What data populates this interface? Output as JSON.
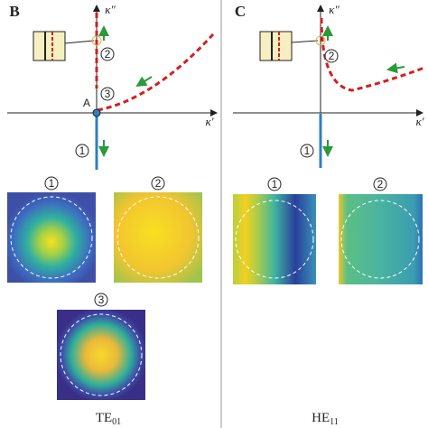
{
  "panels": [
    {
      "label": "B",
      "y_axis": "κ″",
      "x_axis": "κ′",
      "point": "A",
      "curve_labels": [
        "1",
        "2",
        "3"
      ],
      "map_labels": [
        "1",
        "2",
        "3"
      ],
      "caption": {
        "main": "TE",
        "sub": "01"
      }
    },
    {
      "label": "C",
      "y_axis": "κ″",
      "x_axis": "κ′",
      "curve_labels": [
        "1",
        "2"
      ],
      "map_labels": [
        "1",
        "2"
      ],
      "caption": {
        "main": "HE",
        "sub": "11"
      }
    }
  ]
}
